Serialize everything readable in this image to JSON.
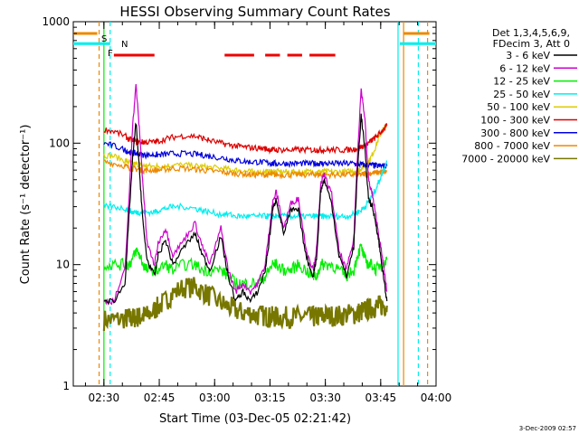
{
  "chart_data": {
    "type": "line",
    "title": "HESSI Observing Summary Count Rates",
    "xlabel": "Start Time (03-Dec-05 02:21:42)",
    "ylabel": "Count Rate (s⁻¹ detector⁻¹)",
    "ylim": [
      1,
      1000
    ],
    "y_scale": "log",
    "xlim": [
      "02:21:42",
      "04:00:00"
    ],
    "x_ticks": [
      "02:30",
      "02:45",
      "03:00",
      "03:15",
      "03:30",
      "03:45",
      "04:00"
    ],
    "y_ticks": [
      "1",
      "10",
      "100",
      "1000"
    ],
    "legend_header": [
      "Det 1,3,4,5,6,9,",
      "FDecim 3, Att 0"
    ],
    "legend_position": "right",
    "grid": false,
    "footer_date": "3-Dec-2009 02:57",
    "flag_labels": {
      "s": "S",
      "n": "N",
      "f": "F"
    },
    "x_minutes": [
      8.3,
      11,
      14,
      15,
      16,
      17,
      18,
      19,
      20,
      22,
      23,
      25,
      27,
      30,
      33,
      35,
      37,
      40,
      42,
      44,
      46,
      48,
      50,
      52,
      53,
      54,
      55,
      57,
      59,
      61,
      63,
      65,
      66,
      67,
      68,
      70,
      72,
      74,
      76,
      77,
      78,
      79,
      80,
      81,
      82,
      83,
      84,
      85
    ],
    "series": [
      {
        "name": "3 - 6 keV",
        "color": "#000000",
        "values": [
          5,
          5,
          7,
          22,
          70,
          150,
          55,
          20,
          11,
          8,
          12,
          16,
          10,
          14,
          18,
          12,
          9,
          17,
          8,
          5,
          6,
          5,
          6,
          9,
          15,
          28,
          35,
          18,
          28,
          28,
          12,
          8,
          12,
          40,
          50,
          32,
          12,
          8,
          14,
          60,
          170,
          90,
          35,
          30,
          22,
          14,
          8,
          5
        ]
      },
      {
        "name": "6 - 12 keV",
        "color": "#cc00cc",
        "values": [
          5,
          5,
          9,
          30,
          130,
          300,
          120,
          40,
          15,
          10,
          15,
          20,
          12,
          16,
          22,
          14,
          10,
          20,
          9,
          6,
          7,
          6,
          7,
          10,
          18,
          32,
          40,
          20,
          32,
          35,
          14,
          9,
          14,
          45,
          55,
          38,
          13,
          9,
          16,
          80,
          280,
          160,
          50,
          38,
          25,
          16,
          10,
          6
        ]
      },
      {
        "name": "12 - 25 keV",
        "color": "#00ee00",
        "values": [
          10,
          10,
          10,
          10,
          11,
          13,
          12,
          10,
          9,
          9,
          9,
          10,
          9,
          10,
          10,
          9,
          9,
          9,
          8,
          7,
          7,
          7,
          7,
          8,
          9,
          10,
          10,
          9,
          9,
          10,
          9,
          8,
          8,
          10,
          10,
          10,
          9,
          8,
          9,
          12,
          14,
          11,
          10,
          10,
          9,
          10,
          10,
          11
        ]
      },
      {
        "name": "25 - 50 keV",
        "color": "#00eeee",
        "values": [
          30,
          30,
          29,
          28,
          27,
          27,
          27,
          27,
          27,
          27,
          28,
          29,
          30,
          30,
          29,
          28,
          27,
          26,
          26,
          25,
          25,
          25,
          25,
          25,
          25,
          25,
          25,
          25,
          25,
          25,
          25,
          25,
          25,
          25,
          25,
          25,
          25,
          25,
          26,
          27,
          28,
          30,
          33,
          37,
          42,
          50,
          60,
          70
        ]
      },
      {
        "name": "50 - 100 keV",
        "color": "#ddcc00",
        "values": [
          80,
          78,
          72,
          70,
          68,
          67,
          66,
          65,
          65,
          64,
          65,
          65,
          66,
          66,
          65,
          64,
          63,
          62,
          61,
          60,
          59,
          58,
          58,
          58,
          58,
          58,
          58,
          58,
          58,
          58,
          58,
          58,
          58,
          58,
          58,
          58,
          58,
          58,
          59,
          60,
          62,
          65,
          70,
          80,
          95,
          115,
          130,
          140
        ]
      },
      {
        "name": "100 - 300 keV",
        "color": "#dd0000",
        "values": [
          130,
          125,
          115,
          108,
          105,
          103,
          102,
          102,
          102,
          102,
          104,
          108,
          112,
          115,
          114,
          110,
          105,
          100,
          97,
          95,
          93,
          92,
          91,
          90,
          89,
          88,
          88,
          88,
          88,
          88,
          88,
          88,
          88,
          88,
          88,
          88,
          88,
          88,
          89,
          91,
          93,
          96,
          100,
          106,
          112,
          120,
          130,
          140
        ]
      },
      {
        "name": "300 - 800 keV",
        "color": "#0000dd",
        "values": [
          100,
          95,
          88,
          85,
          83,
          82,
          81,
          80,
          80,
          80,
          80,
          81,
          82,
          82,
          81,
          80,
          78,
          76,
          74,
          72,
          71,
          70,
          70,
          69,
          69,
          68,
          68,
          68,
          68,
          68,
          68,
          68,
          68,
          68,
          68,
          68,
          68,
          68,
          68,
          67,
          67,
          66,
          66,
          66,
          65,
          65,
          65,
          65
        ]
      },
      {
        "name": "800 - 7000 keV",
        "color": "#ee8800",
        "values": [
          70,
          68,
          65,
          63,
          62,
          61,
          61,
          60,
          60,
          60,
          60,
          61,
          62,
          62,
          61,
          60,
          59,
          58,
          57,
          56,
          56,
          55,
          55,
          55,
          55,
          55,
          55,
          55,
          55,
          55,
          55,
          55,
          55,
          55,
          55,
          55,
          55,
          55,
          55,
          55,
          55,
          56,
          56,
          57,
          57,
          58,
          58,
          58
        ]
      },
      {
        "name": "7000 - 20000 keV",
        "color": "#777700",
        "values": [
          3.5,
          3.5,
          3.6,
          3.6,
          3.6,
          3.7,
          3.7,
          3.8,
          3.8,
          4.2,
          4.5,
          5.0,
          5.8,
          6.5,
          6.5,
          6.0,
          5.5,
          4.8,
          4.5,
          4.2,
          4.0,
          4.0,
          3.8,
          3.8,
          3.7,
          3.7,
          3.7,
          3.7,
          3.7,
          3.7,
          3.7,
          3.7,
          3.7,
          3.8,
          3.8,
          3.8,
          3.8,
          3.9,
          3.9,
          4.0,
          4.1,
          4.2,
          4.3,
          4.4,
          4.5,
          4.6,
          4.6,
          4.6
        ]
      }
    ],
    "vertical_markers": [
      {
        "x_minutes": 7.0,
        "color": "#ee8800",
        "style": "dashed"
      },
      {
        "x_minutes": 8.3,
        "color": "#00ee00",
        "style": "solid"
      },
      {
        "x_minutes": 10.0,
        "color": "#00eeee",
        "style": "dashed"
      },
      {
        "x_minutes": 88.0,
        "color": "#00eeee",
        "style": "solid"
      },
      {
        "x_minutes": 89.5,
        "color": "#ee8800",
        "style": "solid"
      },
      {
        "x_minutes": 93.5,
        "color": "#00eeee",
        "style": "dashed"
      },
      {
        "x_minutes": 96.0,
        "color": "#ee8800",
        "style": "dashed"
      }
    ],
    "flag_bars": [
      {
        "name": "S",
        "color": "#ee8800",
        "level": 800,
        "ranges": [
          [
            0,
            6.5
          ],
          [
            89.5,
            96.5
          ]
        ]
      },
      {
        "name": "N",
        "color": "#00eeee",
        "level": 660,
        "ranges": [
          [
            0,
            10
          ],
          [
            88.5,
            98.3
          ]
        ]
      },
      {
        "name": "F",
        "color": "#ee0000",
        "level": 530,
        "ranges": [
          [
            11,
            22
          ],
          [
            41,
            49
          ],
          [
            52,
            56
          ],
          [
            58,
            62
          ],
          [
            64,
            71
          ]
        ]
      }
    ]
  }
}
